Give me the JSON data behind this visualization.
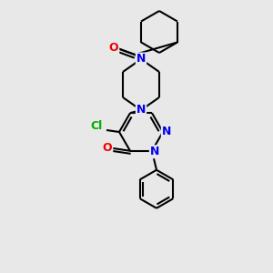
{
  "bg_color": "#e8e8e8",
  "bond_color": "#000000",
  "bond_width": 1.5,
  "atom_colors": {
    "N": "#0000ee",
    "O": "#ee0000",
    "Cl": "#00aa00",
    "C": "#000000"
  },
  "font_size_atom": 9,
  "fig_size": [
    3.0,
    3.0
  ],
  "dpi": 100
}
